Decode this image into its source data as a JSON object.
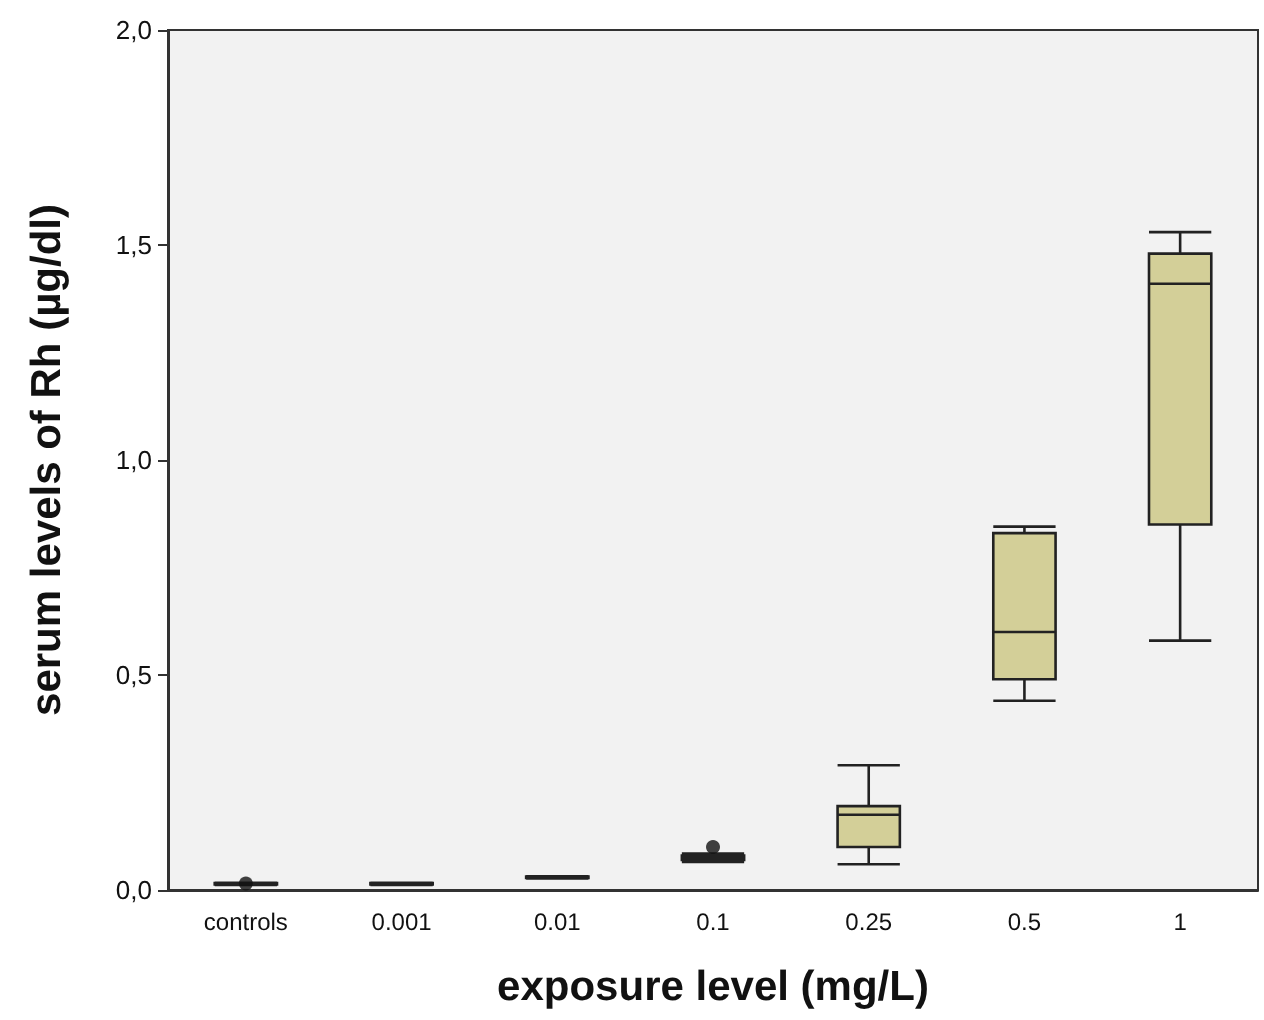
{
  "chart_data": {
    "type": "box",
    "xlabel": "exposure level (mg/L)",
    "ylabel": "serum levels of Rh (µg/dl)",
    "categories": [
      "controls",
      "0.001",
      "0.01",
      "0.1",
      "0.25",
      "0.5",
      "1"
    ],
    "color": "#d3cf98",
    "boxes": [
      {
        "low": 0.012,
        "q1": 0.013,
        "median": 0.015,
        "q3": 0.016,
        "high": 0.017,
        "outliers": [
          0.015
        ]
      },
      {
        "low": 0.012,
        "q1": 0.013,
        "median": 0.015,
        "q3": 0.016,
        "high": 0.017
      },
      {
        "low": 0.027,
        "q1": 0.028,
        "median": 0.03,
        "q3": 0.031,
        "high": 0.032
      },
      {
        "low": 0.065,
        "q1": 0.07,
        "median": 0.075,
        "q3": 0.08,
        "high": 0.085,
        "outliers": [
          0.1
        ]
      },
      {
        "low": 0.06,
        "q1": 0.1,
        "median": 0.175,
        "q3": 0.195,
        "high": 0.29
      },
      {
        "low": 0.44,
        "q1": 0.49,
        "median": 0.6,
        "q3": 0.83,
        "high": 0.845
      },
      {
        "low": 0.58,
        "q1": 0.85,
        "median": 1.41,
        "q3": 1.48,
        "high": 1.53
      }
    ],
    "ylim": [
      0,
      2
    ],
    "yticks": [
      {
        "value": 0,
        "label": "0,0"
      },
      {
        "value": 0.5,
        "label": "0,5"
      },
      {
        "value": 1,
        "label": "1,0"
      },
      {
        "value": 1.5,
        "label": "1,5"
      },
      {
        "value": 2,
        "label": "2,0"
      }
    ],
    "grid": false
  }
}
